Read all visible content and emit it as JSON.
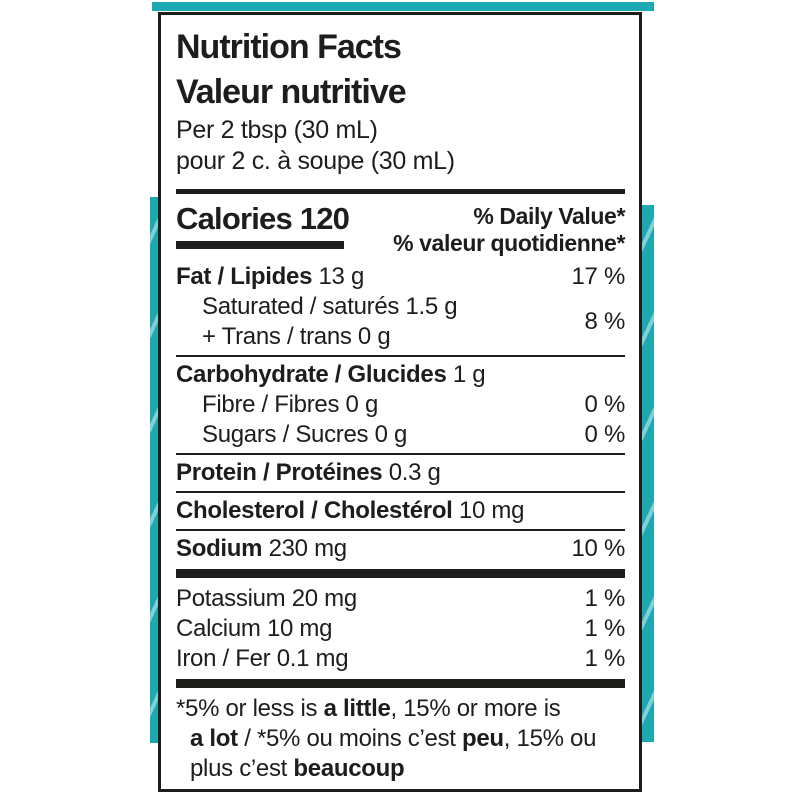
{
  "colors": {
    "accent": "#1ca9b1",
    "text": "#1d1d1b"
  },
  "label": {
    "title_en": "Nutrition Facts",
    "title_fr": "Valeur nutritive",
    "serving_en": "Per 2 tbsp (30 mL)",
    "serving_fr": "pour 2 c. à soupe (30 mL)",
    "calories_label": "Calories",
    "calories_value": "120",
    "dv_header_en": "% Daily Value*",
    "dv_header_fr": "% valeur quotidienne*",
    "rows": [
      {
        "lines": [
          {
            "bold": "Fat / Lipides",
            "rest": " 13 g",
            "indent": false
          }
        ],
        "pct": "17 %",
        "divider_after": "none"
      },
      {
        "lines": [
          {
            "bold": "",
            "rest": "Saturated / saturés 1.5 g",
            "indent": true
          },
          {
            "bold": "",
            "rest": "+ Trans / trans 0 g",
            "indent": true
          }
        ],
        "pct": "8 %",
        "divider_after": "thin"
      },
      {
        "lines": [
          {
            "bold": "Carbohydrate / Glucides",
            "rest": " 1 g",
            "indent": false
          }
        ],
        "pct": "",
        "divider_after": "none"
      },
      {
        "lines": [
          {
            "bold": "",
            "rest": "Fibre / Fibres 0 g",
            "indent": true
          }
        ],
        "pct": "0 %",
        "divider_after": "none"
      },
      {
        "lines": [
          {
            "bold": "",
            "rest": "Sugars / Sucres 0 g",
            "indent": true
          }
        ],
        "pct": "0 %",
        "divider_after": "thin"
      },
      {
        "lines": [
          {
            "bold": "Protein / Protéines",
            "rest": " 0.3 g",
            "indent": false
          }
        ],
        "pct": "",
        "divider_after": "thin"
      },
      {
        "lines": [
          {
            "bold": "Cholesterol / Cholestérol",
            "rest": " 10 mg",
            "indent": false
          }
        ],
        "pct": "",
        "divider_after": "thin"
      },
      {
        "lines": [
          {
            "bold": "Sodium",
            "rest": " 230 mg",
            "indent": false
          }
        ],
        "pct": "10 %",
        "divider_after": "thick"
      },
      {
        "lines": [
          {
            "bold": "",
            "rest": "Potassium 20 mg",
            "indent": false
          }
        ],
        "pct": "1 %",
        "divider_after": "none"
      },
      {
        "lines": [
          {
            "bold": "",
            "rest": "Calcium 10 mg",
            "indent": false
          }
        ],
        "pct": "1 %",
        "divider_after": "none"
      },
      {
        "lines": [
          {
            "bold": "",
            "rest": "Iron / Fer 0.1 mg",
            "indent": false
          }
        ],
        "pct": "1 %",
        "divider_after": "thick"
      }
    ],
    "footnote": [
      {
        "indent": false,
        "segs": [
          {
            "t": "*5% or less is ",
            "b": false
          },
          {
            "t": "a little",
            "b": true
          },
          {
            "t": ", 15% or more is",
            "b": false
          }
        ]
      },
      {
        "indent": true,
        "segs": [
          {
            "t": "a lot",
            "b": true
          },
          {
            "t": " / *5% ou moins c’est ",
            "b": false
          },
          {
            "t": "peu",
            "b": true
          },
          {
            "t": ", 15% ou",
            "b": false
          }
        ]
      },
      {
        "indent": true,
        "segs": [
          {
            "t": "plus c’est ",
            "b": false
          },
          {
            "t": "beaucoup",
            "b": true
          }
        ]
      }
    ]
  }
}
